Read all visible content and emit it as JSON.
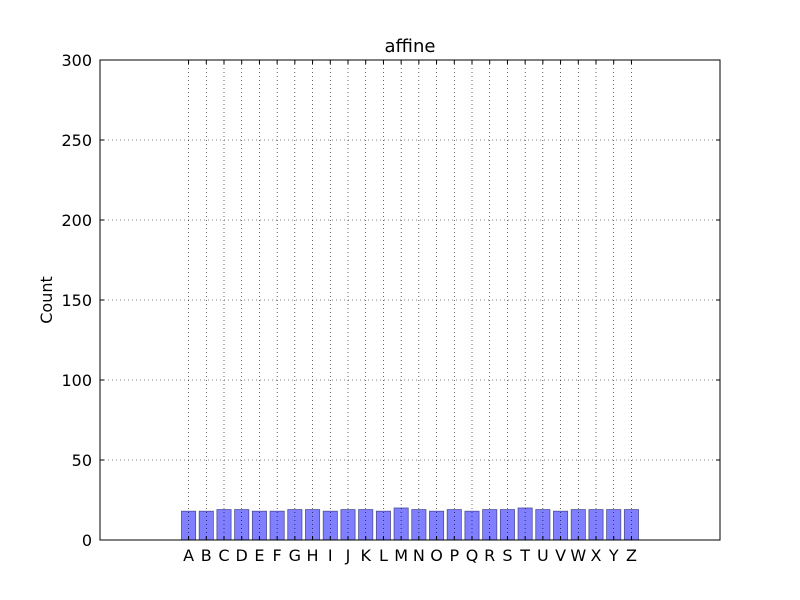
{
  "chart_data": {
    "type": "bar",
    "title": "affine",
    "xlabel": "",
    "ylabel": "Count",
    "ylim": [
      0,
      300
    ],
    "yticks": [
      0,
      50,
      100,
      150,
      200,
      250,
      300
    ],
    "grid": true,
    "categories": [
      "A",
      "B",
      "C",
      "D",
      "E",
      "F",
      "G",
      "H",
      "I",
      "J",
      "K",
      "L",
      "M",
      "N",
      "O",
      "P",
      "Q",
      "R",
      "S",
      "T",
      "U",
      "V",
      "W",
      "X",
      "Y",
      "Z"
    ],
    "values": [
      18,
      18,
      19,
      19,
      18,
      18,
      19,
      19,
      18,
      19,
      19,
      18,
      20,
      19,
      18,
      19,
      18,
      19,
      19,
      20,
      19,
      18,
      19,
      19,
      19,
      19
    ],
    "bar_color": "#7f7fff",
    "bar_edge_color": "#4d4d99"
  }
}
